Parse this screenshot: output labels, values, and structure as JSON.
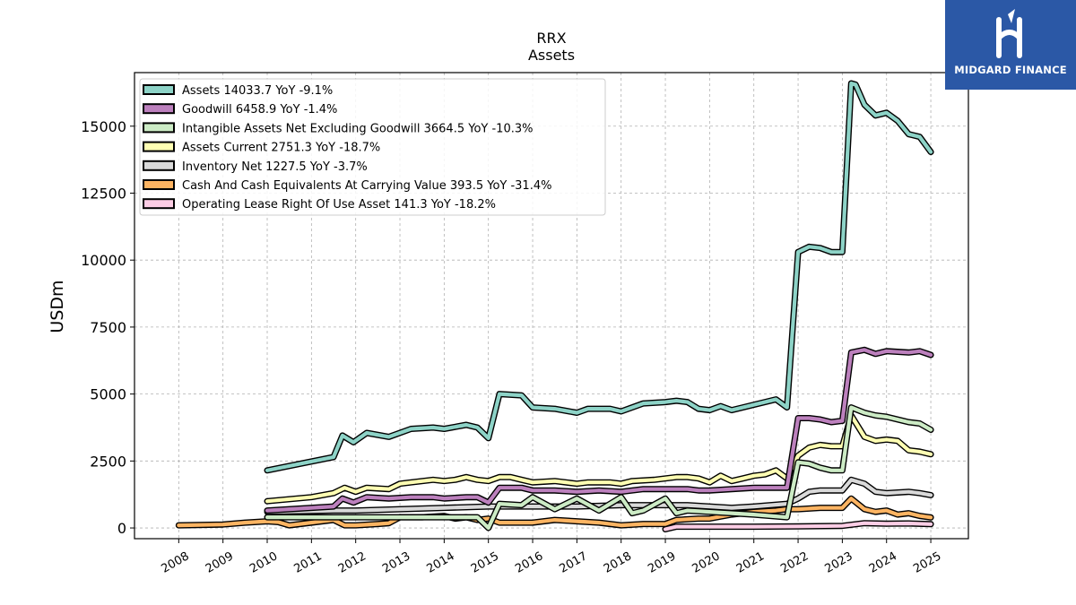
{
  "brand": {
    "name": "MIDGARD FINANCE",
    "logo_icon": "midgard-logo-icon",
    "color": "#2b58a6"
  },
  "chart_data": {
    "type": "line",
    "title": "RRX",
    "subtitle": "Assets",
    "ylabel": "USDm",
    "xlabel": "",
    "xlim": [
      2007.0,
      2025.85
    ],
    "ylim": [
      -400,
      17000
    ],
    "yticks": [
      0,
      2500,
      5000,
      7500,
      10000,
      12500,
      15000
    ],
    "xticks": [
      2008,
      2009,
      2010,
      2011,
      2012,
      2013,
      2014,
      2015,
      2016,
      2017,
      2018,
      2019,
      2020,
      2021,
      2022,
      2023,
      2024,
      2025
    ],
    "grid": true,
    "legend_position": "top-left",
    "series": [
      {
        "name": "Assets",
        "legend": "Assets  14033.7 YoY -9.1%",
        "color": "#8dd3c7",
        "x": [
          2010.0,
          2011.5,
          2011.7,
          2011.95,
          2012.25,
          2012.75,
          2013.25,
          2013.75,
          2014.0,
          2014.5,
          2014.75,
          2015.0,
          2015.25,
          2015.75,
          2016.0,
          2016.5,
          2017.0,
          2017.25,
          2017.75,
          2018.0,
          2018.5,
          2019.0,
          2019.25,
          2019.5,
          2019.75,
          2020.0,
          2020.25,
          2020.5,
          2020.75,
          2021.0,
          2021.25,
          2021.5,
          2021.75,
          2022.0,
          2022.25,
          2022.5,
          2022.75,
          2023.0,
          2023.2,
          2023.3,
          2023.5,
          2023.75,
          2024.0,
          2024.25,
          2024.5,
          2024.75,
          2025.0
        ],
        "y": [
          2150,
          2650,
          3450,
          3200,
          3550,
          3400,
          3700,
          3750,
          3700,
          3850,
          3750,
          3350,
          5000,
          4950,
          4500,
          4450,
          4300,
          4450,
          4450,
          4350,
          4650,
          4700,
          4750,
          4700,
          4450,
          4400,
          4550,
          4400,
          4500,
          4600,
          4700,
          4800,
          4500,
          10300,
          10500,
          10450,
          10300,
          10300,
          16600,
          16550,
          15800,
          15400,
          15500,
          15200,
          14700,
          14600,
          14033.7
        ]
      },
      {
        "name": "Goodwill",
        "legend": "Goodwill  6458.9 YoY -1.4%",
        "color": "#bc80bd",
        "x": [
          2010.0,
          2011.5,
          2011.7,
          2011.95,
          2012.25,
          2012.75,
          2013.25,
          2013.75,
          2014.0,
          2014.5,
          2014.75,
          2015.0,
          2015.25,
          2015.75,
          2016.0,
          2016.5,
          2017.0,
          2017.5,
          2018.0,
          2018.5,
          2019.0,
          2019.5,
          2019.75,
          2020.0,
          2020.5,
          2021.0,
          2021.5,
          2021.75,
          2022.0,
          2022.25,
          2022.5,
          2022.75,
          2023.0,
          2023.2,
          2023.5,
          2023.75,
          2024.0,
          2024.5,
          2024.75,
          2025.0
        ],
        "y": [
          650,
          800,
          1100,
          950,
          1150,
          1100,
          1150,
          1150,
          1100,
          1150,
          1150,
          950,
          1500,
          1500,
          1400,
          1400,
          1350,
          1400,
          1350,
          1450,
          1450,
          1450,
          1400,
          1400,
          1450,
          1500,
          1500,
          1500,
          4100,
          4100,
          4050,
          3950,
          4000,
          6550,
          6650,
          6500,
          6600,
          6550,
          6600,
          6458.9
        ]
      },
      {
        "name": "Intangible Assets Net Excluding Goodwill",
        "legend": "Intangible Assets Net Excluding Goodwill  3664.5 YoY -10.3%",
        "color": "#ccebc5",
        "x": [
          2010.0,
          2011.5,
          2012.0,
          2013.0,
          2014.0,
          2014.75,
          2015.0,
          2015.25,
          2015.75,
          2016.0,
          2016.5,
          2017.0,
          2017.5,
          2018.0,
          2018.25,
          2018.5,
          2019.0,
          2019.25,
          2019.5,
          2020.0,
          2021.0,
          2021.75,
          2022.0,
          2022.25,
          2022.5,
          2022.75,
          2023.0,
          2023.2,
          2023.5,
          2023.75,
          2024.0,
          2024.5,
          2024.75,
          2025.0
        ],
        "y": [
          400,
          400,
          400,
          400,
          400,
          400,
          0,
          900,
          850,
          1150,
          700,
          1100,
          650,
          1150,
          550,
          650,
          1100,
          550,
          650,
          600,
          500,
          400,
          2450,
          2400,
          2250,
          2150,
          2150,
          4500,
          4300,
          4200,
          4150,
          3950,
          3900,
          3664.5
        ]
      },
      {
        "name": "Assets Current",
        "legend": "Assets Current  2751.3 YoY -18.7%",
        "color": "#ffffb3",
        "x": [
          2010.0,
          2011.0,
          2011.5,
          2011.75,
          2012.0,
          2012.25,
          2012.75,
          2013.0,
          2013.25,
          2013.75,
          2014.0,
          2014.25,
          2014.5,
          2014.75,
          2015.0,
          2015.25,
          2015.5,
          2015.75,
          2016.0,
          2016.5,
          2017.0,
          2017.25,
          2017.75,
          2018.0,
          2018.25,
          2018.75,
          2019.0,
          2019.25,
          2019.5,
          2019.75,
          2020.0,
          2020.25,
          2020.5,
          2020.75,
          2021.0,
          2021.25,
          2021.5,
          2021.75,
          2022.0,
          2022.25,
          2022.5,
          2022.75,
          2023.0,
          2023.2,
          2023.5,
          2023.75,
          2024.0,
          2024.25,
          2024.5,
          2024.75,
          2025.0
        ],
        "y": [
          1000,
          1150,
          1300,
          1500,
          1350,
          1500,
          1450,
          1650,
          1700,
          1800,
          1750,
          1800,
          1900,
          1800,
          1750,
          1900,
          1900,
          1800,
          1700,
          1750,
          1650,
          1700,
          1700,
          1650,
          1750,
          1800,
          1850,
          1900,
          1900,
          1850,
          1700,
          1950,
          1750,
          1850,
          1950,
          2000,
          2150,
          1850,
          2700,
          3000,
          3100,
          3050,
          3050,
          4200,
          3400,
          3250,
          3300,
          3250,
          2900,
          2850,
          2751.3
        ]
      },
      {
        "name": "Inventory Net",
        "legend": "Inventory Net  1227.5 YoY -3.7%",
        "color": "#d9d9d9",
        "x": [
          2010.0,
          2011.5,
          2012.0,
          2013.0,
          2014.0,
          2015.0,
          2016.0,
          2017.0,
          2018.0,
          2019.0,
          2019.5,
          2020.0,
          2020.5,
          2021.0,
          2021.75,
          2022.0,
          2022.25,
          2022.5,
          2022.75,
          2023.0,
          2023.2,
          2023.5,
          2023.75,
          2024.0,
          2024.5,
          2024.75,
          2025.0
        ],
        "y": [
          600,
          650,
          650,
          700,
          750,
          800,
          800,
          800,
          850,
          850,
          850,
          800,
          750,
          800,
          900,
          1100,
          1350,
          1400,
          1400,
          1400,
          1800,
          1650,
          1350,
          1300,
          1350,
          1300,
          1227.5
        ]
      },
      {
        "name": "Cash And Cash Equivalents At Carrying Value",
        "legend": "Cash And Cash Equivalents At Carrying Value  393.5 YoY -31.4%",
        "color": "#fdb462",
        "x": [
          2008.0,
          2009.0,
          2009.5,
          2010.0,
          2010.25,
          2010.5,
          2010.75,
          2011.0,
          2011.5,
          2011.75,
          2012.0,
          2012.5,
          2012.75,
          2013.0,
          2013.5,
          2014.0,
          2014.25,
          2014.5,
          2014.75,
          2015.0,
          2015.25,
          2016.0,
          2016.5,
          2017.0,
          2017.5,
          2018.0,
          2018.5,
          2019.0,
          2019.25,
          2019.75,
          2020.0,
          2020.5,
          2021.0,
          2021.5,
          2021.75,
          2022.0,
          2022.5,
          2022.75,
          2023.0,
          2023.2,
          2023.5,
          2023.75,
          2024.0,
          2024.25,
          2024.5,
          2024.75,
          2025.0
        ],
        "y": [
          100,
          130,
          200,
          250,
          220,
          100,
          150,
          200,
          300,
          100,
          100,
          150,
          180,
          400,
          400,
          450,
          350,
          400,
          300,
          350,
          200,
          200,
          300,
          250,
          200,
          100,
          150,
          150,
          300,
          350,
          350,
          500,
          600,
          650,
          700,
          700,
          750,
          750,
          750,
          1100,
          700,
          600,
          650,
          500,
          550,
          450,
          393.5
        ]
      },
      {
        "name": "Operating Lease Right Of Use Asset",
        "legend": "Operating Lease Right Of Use Asset  141.3 YoY -18.2%",
        "color": "#fccde5",
        "x": [
          2019.0,
          2019.25,
          2020.0,
          2021.0,
          2022.0,
          2023.0,
          2023.5,
          2024.0,
          2024.5,
          2025.0
        ],
        "y": [
          -50,
          50,
          50,
          50,
          60,
          80,
          180,
          160,
          170,
          141.3
        ]
      }
    ]
  }
}
